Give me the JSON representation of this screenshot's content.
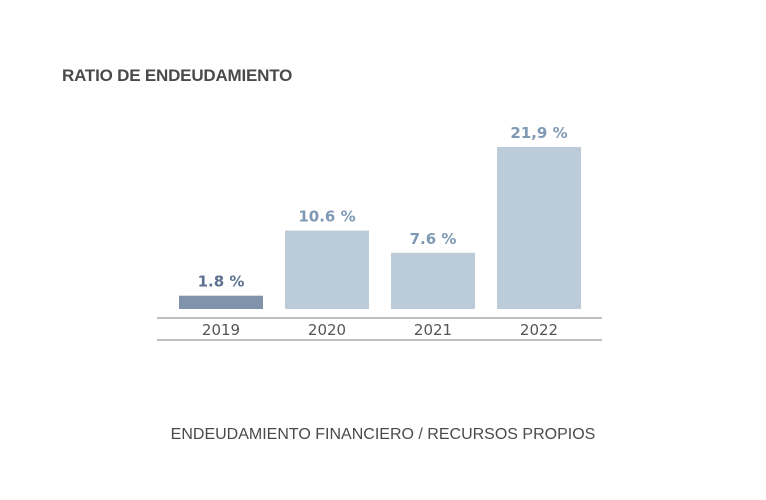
{
  "chart_data": {
    "type": "bar",
    "title": "RATIO DE ENDEUDAMIENTO",
    "caption": "ENDEUDAMIENTO FINANCIERO / RECURSOS PROPIOS",
    "categories": [
      "2019",
      "2020",
      "2021",
      "2022"
    ],
    "values": [
      1.8,
      10.6,
      7.6,
      21.9
    ],
    "value_labels": [
      "1.8 %",
      "10.6 %",
      "7.6 %",
      "21,9 %"
    ],
    "xlabel": "",
    "ylabel": "",
    "ylim": [
      0,
      21.9
    ],
    "grid": false,
    "colors": {
      "highlight_bar": "#8193aa",
      "bar": "#bccbd9",
      "highlight_label": "#5d7290",
      "label": "#7f99b5",
      "axis_line": "#aaaaaa"
    }
  }
}
